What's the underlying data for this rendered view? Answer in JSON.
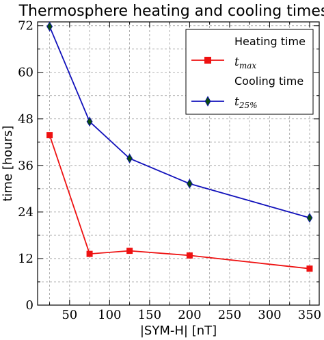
{
  "chart_data": {
    "type": "line",
    "title": "Thermosphere heating and cooling times",
    "xlabel": "|SYM-H| [nT]",
    "ylabel": "time [hours]",
    "xlim": [
      10,
      362
    ],
    "ylim": [
      0,
      73
    ],
    "x_major_ticks": [
      50,
      100,
      150,
      200,
      250,
      300,
      350
    ],
    "y_major_ticks": [
      0,
      12,
      24,
      36,
      48,
      60,
      72
    ],
    "x_minor_ticks": [
      25,
      75,
      125,
      175,
      225,
      275,
      325
    ],
    "y_minor_ticks": [
      6,
      18,
      30,
      42,
      54,
      66
    ],
    "grid": true,
    "legend_position": "top-right",
    "series": [
      {
        "key": "heating",
        "legend_heading": "Heating time",
        "symbol_main": "t",
        "symbol_sub": "max",
        "color": "#ee1111",
        "marker": "square",
        "x": [
          25,
          75,
          125,
          200,
          350
        ],
        "y": [
          43.8,
          13.2,
          14.0,
          12.8,
          9.4
        ]
      },
      {
        "key": "cooling",
        "legend_heading": "Cooling time",
        "symbol_main": "t",
        "symbol_sub": "25%",
        "color": "#1111bb",
        "marker_color": "#0a4a10",
        "marker": "thin-diamond",
        "x": [
          25,
          75,
          125,
          200,
          350
        ],
        "y": [
          71.8,
          47.3,
          37.8,
          31.3,
          22.5
        ]
      }
    ]
  }
}
